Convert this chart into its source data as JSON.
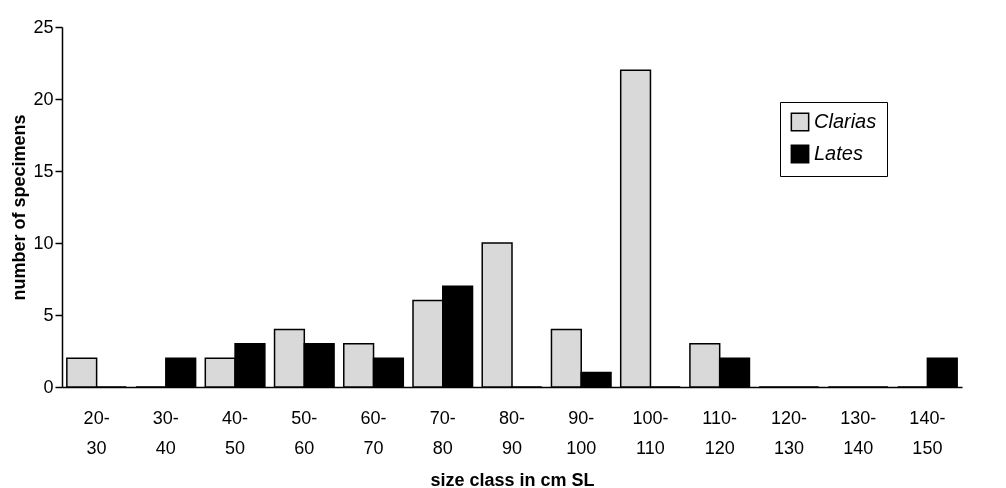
{
  "chart_data": {
    "type": "bar",
    "xlabel": "size class in cm SL",
    "ylabel": "number of specimens",
    "categories": [
      "20-30",
      "30-40",
      "40-50",
      "50-60",
      "60-70",
      "70-80",
      "80-90",
      "90-100",
      "100-110",
      "110-120",
      "120-130",
      "130-140",
      "140-150"
    ],
    "series": [
      {
        "name": "Clarias",
        "color": "#d9d9d9",
        "values": [
          2,
          0,
          2,
          4,
          3,
          6,
          10,
          4,
          22,
          3,
          0,
          0,
          0
        ]
      },
      {
        "name": "Lates",
        "color": "#000000",
        "values": [
          0,
          2,
          3,
          3,
          2,
          7,
          0,
          1,
          0,
          2,
          0,
          0,
          2
        ]
      }
    ],
    "ylim": [
      0,
      25
    ],
    "yticks": [
      0,
      5,
      10,
      15,
      20,
      25
    ],
    "grid": false,
    "legend": "top right"
  }
}
